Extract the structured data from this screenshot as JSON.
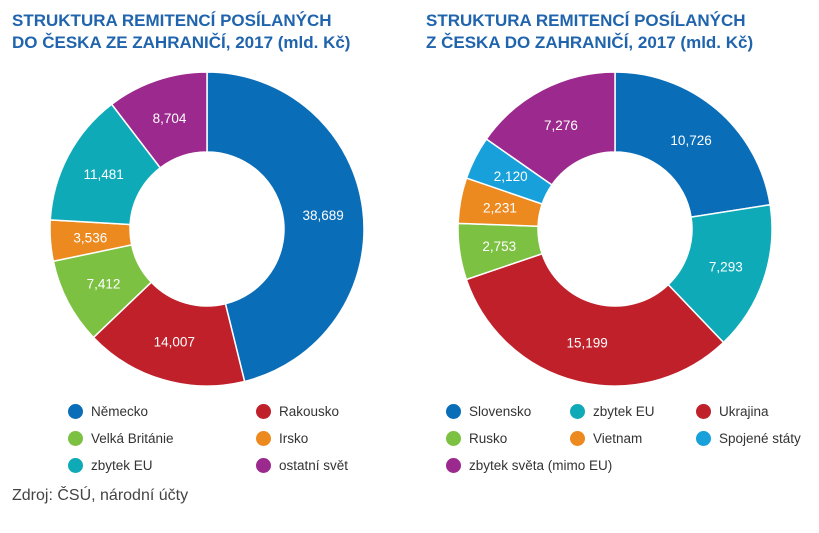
{
  "chart_data": [
    {
      "type": "pie",
      "title_lines": [
        "STRUKTURA REMITENCÍ POSÍLANÝCH",
        "DO ČESKA ZE ZAHRANIČÍ, 2017 (mld. Kč)"
      ],
      "categories": [
        "Německo",
        "Rakousko",
        "Velká Británie",
        "Irsko",
        "zbytek EU",
        "ostatní svět"
      ],
      "values": [
        38.689,
        14.007,
        7.412,
        3.536,
        11.481,
        8.704
      ],
      "labels": [
        "38,689",
        "14,007",
        "7,412",
        "3,536",
        "11,481",
        "8,704"
      ],
      "colors": [
        "#0a6db7",
        "#c0202a",
        "#7dc143",
        "#ed8a1f",
        "#0eaab8",
        "#9c2a8e"
      ],
      "legend": [
        {
          "label": "Německo",
          "color": "#0a6db7"
        },
        {
          "label": "Rakousko",
          "color": "#c0202a"
        },
        {
          "label": "Velká Británie",
          "color": "#7dc143"
        },
        {
          "label": "Irsko",
          "color": "#ed8a1f"
        },
        {
          "label": "zbytek EU",
          "color": "#0eaab8"
        },
        {
          "label": "ostatní svět",
          "color": "#9c2a8e"
        }
      ]
    },
    {
      "type": "pie",
      "title_lines": [
        "STRUKTURA REMITENCÍ POSÍLANÝCH",
        "Z ČESKA DO ZAHRANIČÍ, 2017 (mld. Kč)"
      ],
      "categories": [
        "Slovensko",
        "zbytek EU",
        "Ukrajina",
        "Rusko",
        "Vietnam",
        "Spojené státy",
        "zbytek světa (mimo EU)"
      ],
      "values": [
        10.726,
        7.293,
        15.199,
        2.753,
        2.231,
        2.12,
        7.276
      ],
      "labels": [
        "10,726",
        "7,293",
        "15,199",
        "2,753",
        "2,231",
        "2,120",
        "7,276"
      ],
      "colors": [
        "#0a6db7",
        "#0eaab8",
        "#c0202a",
        "#7dc143",
        "#ed8a1f",
        "#17a0da",
        "#9c2a8e"
      ],
      "legend": [
        {
          "label": "Slovensko",
          "color": "#0a6db7"
        },
        {
          "label": "zbytek EU",
          "color": "#0eaab8"
        },
        {
          "label": "Ukrajina",
          "color": "#c0202a"
        },
        {
          "label": "Rusko",
          "color": "#7dc143"
        },
        {
          "label": "Vietnam",
          "color": "#ed8a1f"
        },
        {
          "label": "Spojené státy",
          "color": "#17a0da"
        },
        {
          "label": "zbytek světa (mimo EU)",
          "color": "#9c2a8e"
        }
      ]
    }
  ],
  "source": "Zdroj: ČSÚ, národní účty"
}
